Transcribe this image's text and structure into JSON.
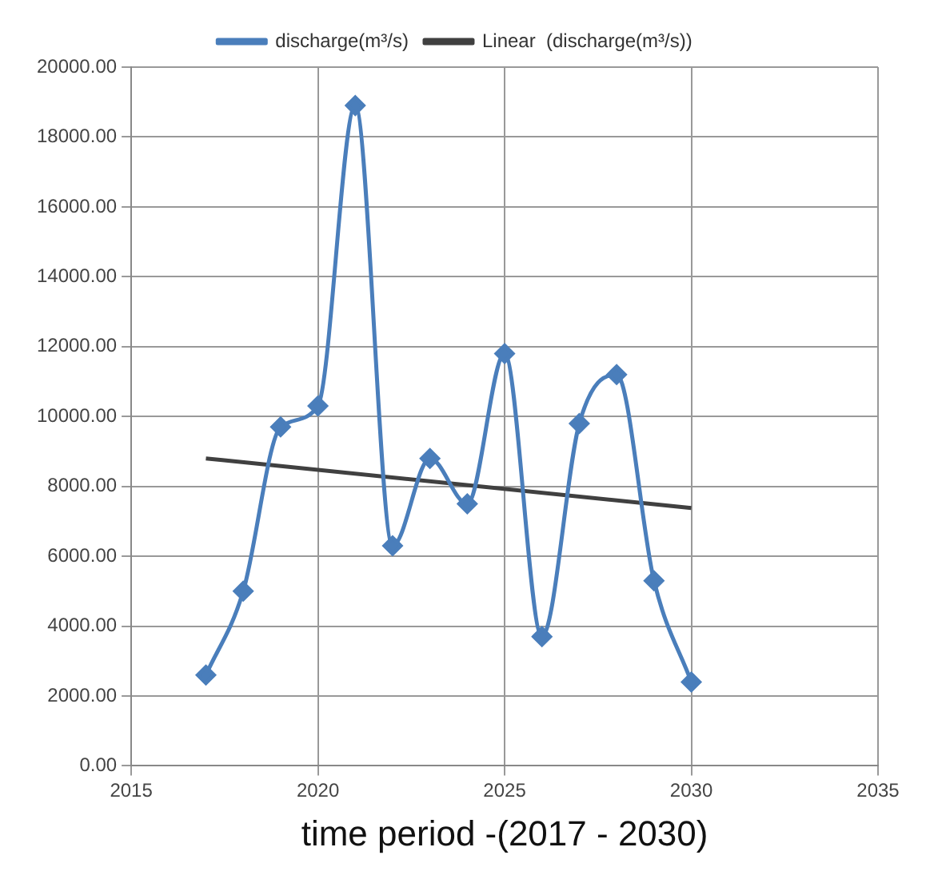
{
  "chart_data": {
    "type": "line",
    "xlabel": "time period -(2017 - 2030)",
    "x": [
      2017,
      2018,
      2019,
      2020,
      2021,
      2022,
      2023,
      2024,
      2025,
      2026,
      2027,
      2028,
      2029,
      2030
    ],
    "series": [
      {
        "name": "discharge(m³/s)",
        "color": "#4a7ebb",
        "marker": "diamond",
        "values": [
          2600,
          5000,
          9700,
          10300,
          18900,
          6300,
          8800,
          7500,
          11800,
          3700,
          9800,
          11200,
          5300,
          2400
        ]
      },
      {
        "name": "Linear  (discharge(m³/s))",
        "color": "#404040",
        "marker": "none",
        "x": [
          2017,
          2030
        ],
        "values": [
          8800,
          7380
        ]
      }
    ],
    "xlim": [
      2015,
      2035
    ],
    "xticks": [
      2015,
      2020,
      2025,
      2030,
      2035
    ],
    "ylim": [
      0,
      20000
    ],
    "yticks": [
      {
        "value": 0,
        "label": "0.00"
      },
      {
        "value": 2000,
        "label": "2000.00"
      },
      {
        "value": 4000,
        "label": "4000.00"
      },
      {
        "value": 6000,
        "label": "6000.00"
      },
      {
        "value": 8000,
        "label": "8000.00"
      },
      {
        "value": 10000,
        "label": "10000.00"
      },
      {
        "value": 12000,
        "label": "12000.00"
      },
      {
        "value": 14000,
        "label": "14000.00"
      },
      {
        "value": 16000,
        "label": "16000.00"
      },
      {
        "value": 18000,
        "label": "18000.00"
      },
      {
        "value": 20000,
        "label": "20000.00"
      }
    ],
    "grid": true,
    "legend": "top"
  }
}
